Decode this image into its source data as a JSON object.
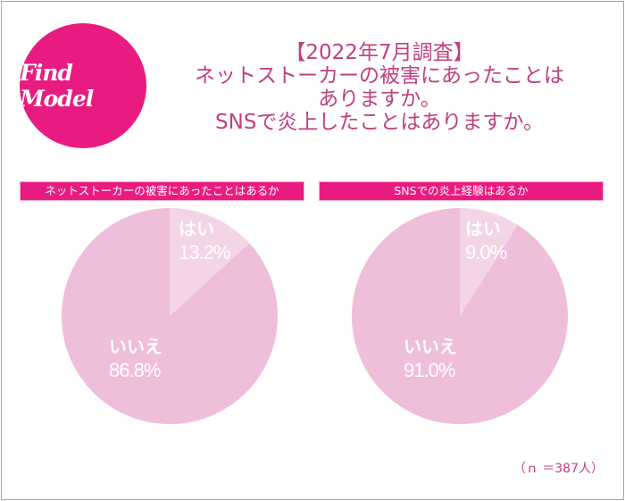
{
  "logo": {
    "text": "Find Model"
  },
  "title": {
    "lines": [
      "【2022年7月調査】",
      "ネットストーカーの被害にあったことは",
      "ありますか。",
      "SNSで炎上したことはありますか。"
    ]
  },
  "chart_data": [
    {
      "type": "pie",
      "title": "ネットストーカーの被害にあったことはあるか",
      "labels": [
        "はい",
        "いいえ"
      ],
      "values": [
        13.2,
        86.8
      ],
      "display": [
        "13.2%",
        "86.8%"
      ],
      "colors": [
        "#f4d5e7",
        "#efbedb"
      ]
    },
    {
      "type": "pie",
      "title": "SNSでの炎上経験はあるか",
      "labels": [
        "はい",
        "いいえ"
      ],
      "values": [
        9.0,
        91.0
      ],
      "display": [
        "9.0%",
        "91.0%"
      ],
      "colors": [
        "#f4d5e7",
        "#efbedb"
      ]
    }
  ],
  "note": "（ｎ ＝387人）"
}
